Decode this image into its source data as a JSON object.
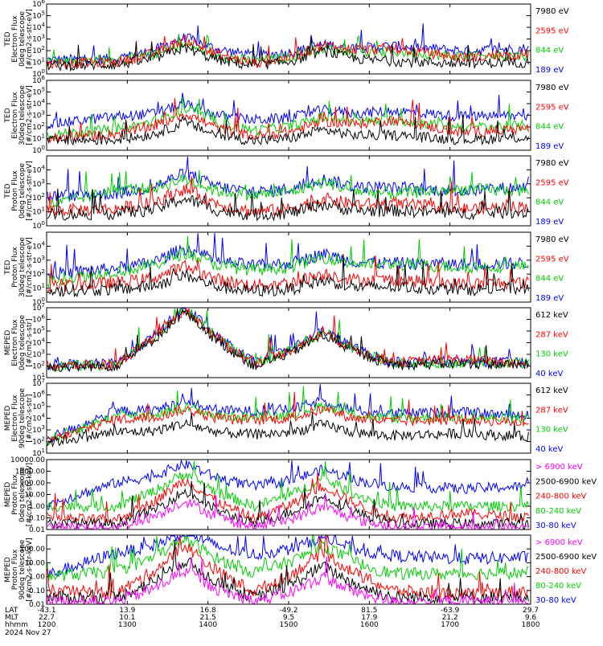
{
  "colors": {
    "c189": "#0000ff",
    "c844": "#00cc00",
    "c2595": "#ff0000",
    "c7980": "#000000",
    "magenta": "#ff00ff"
  },
  "chart_data": [
    {
      "type": "line",
      "ylabel_lines": [
        "TED",
        "Electron Flux",
        "0deg telescope",
        "[#/cm2-s-str-eV]"
      ],
      "ylim": [
        1,
        1000000
      ],
      "scale": "log",
      "yticks": [
        "10^0",
        "10^1",
        "10^2",
        "10^3",
        "10^4",
        "10^5",
        "10^6"
      ],
      "legend": [
        "7980 eV",
        "2595 eV",
        "844 eV",
        "189 eV"
      ],
      "series": [
        {
          "name": "189 eV",
          "color": "#0000ff",
          "values": [
            1.2,
            1.3,
            2.5,
            1.6,
            2.0,
            2.4,
            2.0,
            2.2
          ]
        },
        {
          "name": "844 eV",
          "color": "#00cc00",
          "values": [
            1.1,
            1.2,
            1.9,
            1.1,
            1.7,
            1.9,
            1.5,
            1.6
          ]
        },
        {
          "name": "2595 eV",
          "color": "#ff0000",
          "values": [
            0.9,
            1.0,
            2.3,
            0.9,
            1.9,
            2.2,
            1.4,
            1.7
          ]
        },
        {
          "name": "7980 eV",
          "color": "#000000",
          "values": [
            0.7,
            0.8,
            1.6,
            0.7,
            1.4,
            1.1,
            0.9,
            1.0
          ]
        }
      ]
    },
    {
      "type": "line",
      "ylabel_lines": [
        "TED",
        "Electron Flux",
        "30deg telescope",
        "[#/cm2-s-str-eV]"
      ],
      "ylim": [
        1,
        1000000
      ],
      "scale": "log",
      "yticks": [
        "10^0",
        "10^1",
        "10^2",
        "10^3",
        "10^4",
        "10^5",
        "10^6"
      ],
      "legend": [
        "7980 eV",
        "2595 eV",
        "844 eV",
        "189 eV"
      ],
      "series": [
        {
          "name": "189 eV",
          "color": "#0000ff",
          "values": [
            2.2,
            2.9,
            3.3,
            2.6,
            2.9,
            3.4,
            2.9,
            3.0
          ]
        },
        {
          "name": "844 eV",
          "color": "#00cc00",
          "values": [
            1.3,
            1.8,
            2.9,
            1.7,
            2.3,
            2.6,
            2.0,
            2.1
          ]
        },
        {
          "name": "2595 eV",
          "color": "#ff0000",
          "values": [
            1.0,
            1.4,
            2.5,
            1.2,
            1.9,
            2.6,
            1.5,
            1.9
          ]
        },
        {
          "name": "7980 eV",
          "color": "#000000",
          "values": [
            0.8,
            0.9,
            1.7,
            0.8,
            1.2,
            1.3,
            0.9,
            1.1
          ]
        }
      ]
    },
    {
      "type": "line",
      "ylabel_lines": [
        "TED",
        "Proton Flux",
        "0deg telescope",
        "[#/cm2-s-str-eV]"
      ],
      "ylim": [
        1,
        100000
      ],
      "scale": "log",
      "yticks": [
        "10^0",
        "10^1",
        "10^2",
        "10^3",
        "10^4"
      ],
      "legend": [
        "7980 eV",
        "2595 eV",
        "844 eV",
        "189 eV"
      ],
      "series": [
        {
          "name": "189 eV",
          "color": "#0000ff",
          "values": [
            2.1,
            2.3,
            3.1,
            2.4,
            2.8,
            2.7,
            2.5,
            2.8
          ]
        },
        {
          "name": "844 eV",
          "color": "#00cc00",
          "values": [
            1.4,
            2.6,
            2.7,
            2.2,
            2.6,
            2.3,
            2.6,
            2.5
          ]
        },
        {
          "name": "2595 eV",
          "color": "#ff0000",
          "values": [
            1.1,
            1.2,
            2.0,
            1.0,
            1.4,
            1.6,
            1.2,
            1.4
          ]
        },
        {
          "name": "7980 eV",
          "color": "#000000",
          "values": [
            0.8,
            0.9,
            1.3,
            0.8,
            1.0,
            1.1,
            0.9,
            1.0
          ]
        }
      ]
    },
    {
      "type": "line",
      "ylabel_lines": [
        "TED",
        "Proton Flux",
        "30deg telescope",
        "[#/cm2-s-str-eV]"
      ],
      "ylim": [
        1,
        100000
      ],
      "scale": "log",
      "yticks": [
        "10^0",
        "10^1",
        "10^2",
        "10^3",
        "10^4"
      ],
      "legend": [
        "7980 eV",
        "2595 eV",
        "844 eV",
        "189 eV"
      ],
      "series": [
        {
          "name": "189 eV",
          "color": "#0000ff",
          "values": [
            2.0,
            2.4,
            3.2,
            2.6,
            2.9,
            2.8,
            2.7,
            2.8
          ]
        },
        {
          "name": "844 eV",
          "color": "#00cc00",
          "values": [
            1.5,
            2.2,
            2.9,
            2.3,
            2.7,
            2.7,
            2.5,
            2.6
          ]
        },
        {
          "name": "2595 eV",
          "color": "#ff0000",
          "values": [
            1.1,
            1.4,
            1.9,
            1.2,
            1.5,
            1.6,
            1.3,
            1.4
          ]
        },
        {
          "name": "7980 eV",
          "color": "#000000",
          "values": [
            0.8,
            0.9,
            1.3,
            0.8,
            1.0,
            1.1,
            0.9,
            1.0
          ]
        }
      ]
    },
    {
      "type": "line",
      "ylabel_lines": [
        "MEPED",
        "Electron Flux",
        "0deg telescope",
        "[#/cm2-s-str]"
      ],
      "ylim": [
        10,
        10000000
      ],
      "scale": "log",
      "yticks": [
        "10^1",
        "10^2",
        "10^3",
        "10^4",
        "10^5",
        "10^6",
        "10^7"
      ],
      "legend": [
        "612 keV",
        "287 keV",
        "130 keV",
        "40 keV"
      ],
      "series": [
        {
          "name": "40 keV",
          "color": "#0000ff",
          "values": [
            2.1,
            2.2,
            6.4,
            2.3,
            4.5,
            2.3,
            2.4,
            2.3
          ]
        },
        {
          "name": "130 keV",
          "color": "#00cc00",
          "values": [
            2.0,
            2.1,
            6.3,
            2.2,
            4.4,
            2.2,
            2.3,
            2.2
          ]
        },
        {
          "name": "287 keV",
          "color": "#ff0000",
          "values": [
            2.0,
            2.1,
            6.2,
            2.2,
            4.3,
            2.3,
            2.6,
            2.2
          ]
        },
        {
          "name": "612 keV",
          "color": "#000000",
          "values": [
            1.9,
            2.0,
            6.0,
            2.0,
            4.1,
            2.1,
            2.2,
            2.1
          ]
        }
      ]
    },
    {
      "type": "line",
      "ylabel_lines": [
        "MEPED",
        "Electron Flux",
        "90deg telescope",
        "[#/cm2-s-str]"
      ],
      "ylim": [
        10,
        10000000
      ],
      "scale": "log",
      "yticks": [
        "10^1",
        "10^2",
        "10^3",
        "10^4",
        "10^5",
        "10^6",
        "10^7"
      ],
      "legend": [
        "612 keV",
        "287 keV",
        "130 keV",
        "40 keV"
      ],
      "series": [
        {
          "name": "40 keV",
          "color": "#0000ff",
          "values": [
            2.2,
            4.6,
            4.7,
            4.6,
            4.9,
            4.4,
            4.5,
            4.2
          ]
        },
        {
          "name": "130 keV",
          "color": "#00cc00",
          "values": [
            2.1,
            4.2,
            4.3,
            4.1,
            4.5,
            4.0,
            4.1,
            3.9
          ]
        },
        {
          "name": "287 keV",
          "color": "#ff0000",
          "values": [
            2.0,
            3.9,
            4.1,
            3.8,
            4.2,
            3.7,
            3.9,
            3.6
          ]
        },
        {
          "name": "612 keV",
          "color": "#000000",
          "values": [
            1.9,
            2.8,
            2.9,
            2.6,
            2.9,
            2.5,
            2.7,
            2.4
          ]
        }
      ]
    },
    {
      "type": "line",
      "ylabel_lines": [
        "MEPED",
        "Proton Flux",
        "0deg telescope",
        "[#/cm2-s-str-keV]"
      ],
      "ylim": [
        0.01,
        10000
      ],
      "scale": "log",
      "yticks": [
        "10000.00",
        "1000.00",
        "100.00",
        "10.00",
        "1.00",
        "0.10",
        "0.01"
      ],
      "legend": [
        "> 6900 keV",
        "2500-6900 keV",
        "240-800 keV",
        "80-240 keV",
        "30-80 keV"
      ],
      "series": [
        {
          "name": "30-80 keV",
          "color": "#0000ff",
          "values": [
            0.1,
            2.0,
            3.0,
            1.7,
            2.6,
            1.7,
            1.5,
            1.7
          ]
        },
        {
          "name": "80-240 keV",
          "color": "#00cc00",
          "values": [
            0.0,
            0.0,
            2.2,
            0.0,
            1.8,
            0.0,
            0.0,
            0.0
          ]
        },
        {
          "name": "240-800 keV",
          "color": "#ff0000",
          "values": [
            -1.0,
            -1.2,
            1.6,
            -1.1,
            1.2,
            -1.0,
            -0.6,
            -1.0
          ]
        },
        {
          "name": "2500-6900 keV",
          "color": "#000000",
          "values": [
            -1.5,
            -1.5,
            0.6,
            -1.5,
            0.3,
            -1.5,
            -1.5,
            -1.5
          ]
        },
        {
          "name": "> 6900 keV",
          "color": "#ff00ff",
          "values": [
            -1.8,
            -1.8,
            -0.2,
            -1.8,
            -0.6,
            -1.8,
            -1.8,
            -1.8
          ]
        }
      ]
    },
    {
      "type": "line",
      "ylabel_lines": [
        "MEPED",
        "Proton Flux",
        "90deg telescope",
        "[#/cm2-s-str-keV]"
      ],
      "ylim": [
        0.01,
        1000
      ],
      "scale": "log",
      "yticks": [
        "100.00",
        "10.00",
        "1.00",
        "0.10",
        "0.01"
      ],
      "legend": [
        "> 6900 keV",
        "2500-6900 keV",
        "240-800 keV",
        "80-240 keV",
        "30-80 keV"
      ],
      "series": [
        {
          "name": "30-80 keV",
          "color": "#0000ff",
          "values": [
            0.1,
            1.7,
            2.6,
            1.6,
            2.3,
            1.5,
            1.3,
            1.4
          ]
        },
        {
          "name": "80-240 keV",
          "color": "#00cc00",
          "values": [
            0.0,
            0.4,
            2.1,
            0.3,
            1.7,
            0.2,
            0.2,
            0.3
          ]
        },
        {
          "name": "240-800 keV",
          "color": "#ff0000",
          "values": [
            -1.0,
            -1.2,
            1.6,
            -1.1,
            1.2,
            -1.0,
            -1.3,
            -1.0
          ]
        },
        {
          "name": "2500-6900 keV",
          "color": "#000000",
          "values": [
            -1.5,
            -1.5,
            0.5,
            -1.5,
            0.2,
            -1.5,
            -1.5,
            -1.5
          ]
        },
        {
          "name": "> 6900 keV",
          "color": "#ff00ff",
          "values": [
            -1.8,
            -1.8,
            -0.2,
            -1.8,
            -0.6,
            -1.8,
            -1.8,
            -1.8
          ]
        }
      ]
    }
  ],
  "xaxis": {
    "rows": [
      "LAT",
      "MLT",
      "hhmm",
      "2024 Nov 27"
    ],
    "ticks": [
      {
        "lat": "-43.1",
        "mlt": "22.7",
        "hhmm": "1200"
      },
      {
        "lat": "13.9",
        "mlt": "10.1",
        "hhmm": "1300"
      },
      {
        "lat": "16.8",
        "mlt": "21.5",
        "hhmm": "1400"
      },
      {
        "lat": "-49.2",
        "mlt": "9.5",
        "hhmm": "1500"
      },
      {
        "lat": "81.5",
        "mlt": "17.9",
        "hhmm": "1600"
      },
      {
        "lat": "-63.9",
        "mlt": "21.2",
        "hhmm": "1700"
      },
      {
        "lat": "29.7",
        "mlt": "9.6",
        "hhmm": "1800"
      }
    ]
  }
}
